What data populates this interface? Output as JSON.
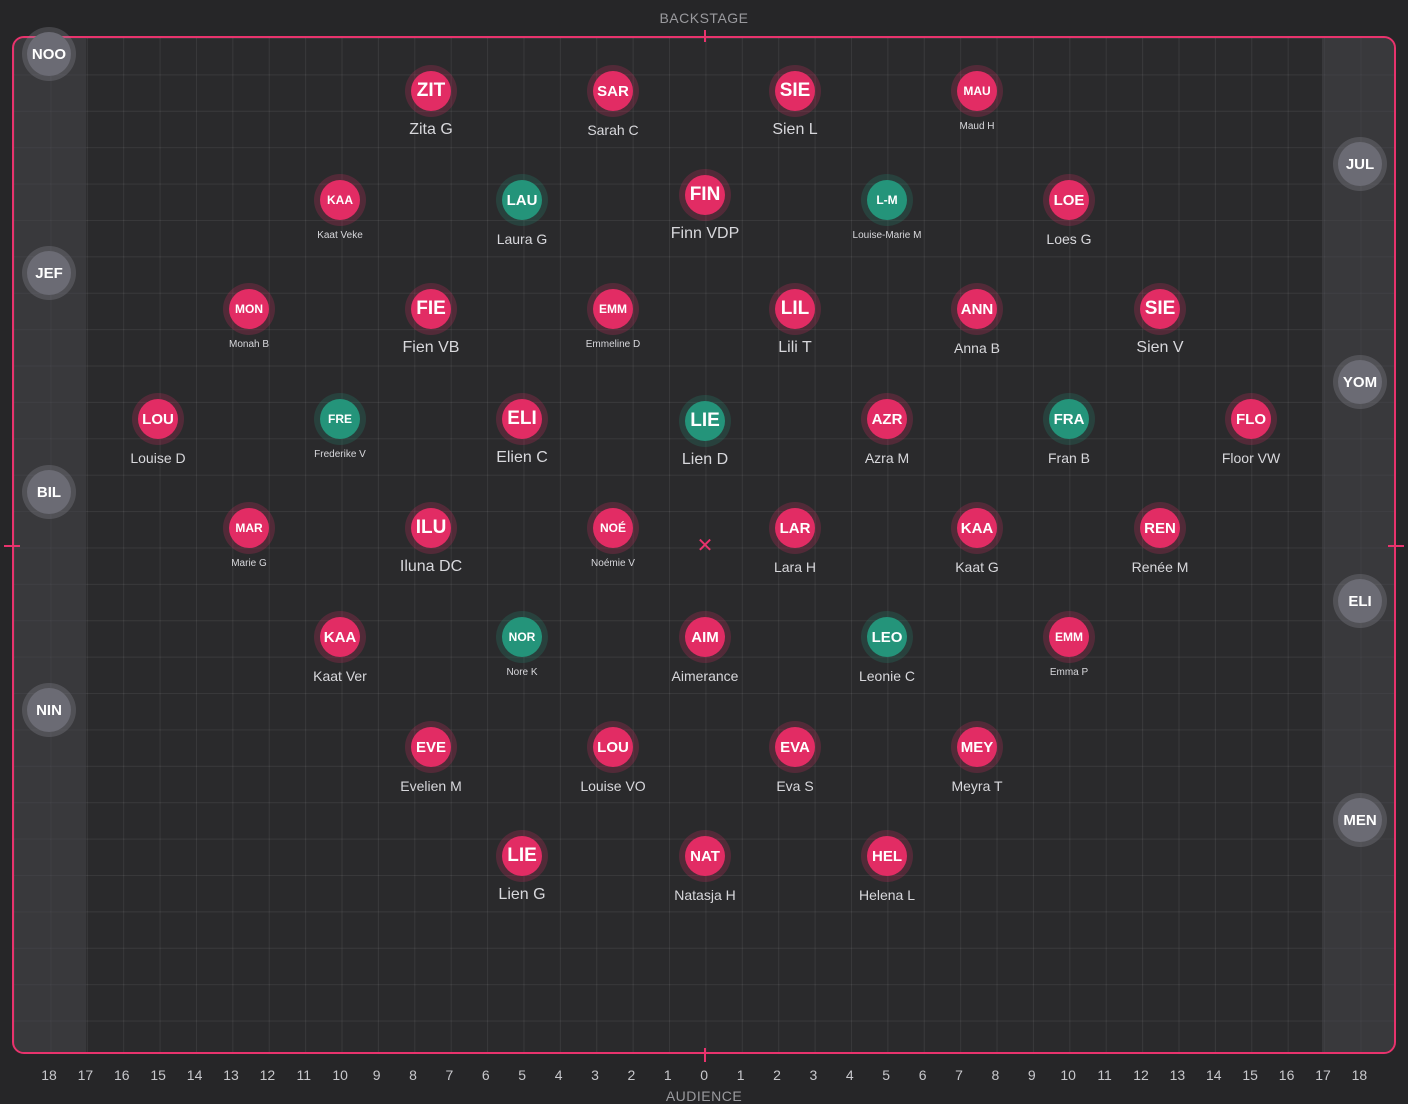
{
  "labels": {
    "top": "BACKSTAGE",
    "bottom": "AUDIENCE"
  },
  "colors": {
    "accent": "#e8336d",
    "pink_dancer": "#e22c64",
    "teal_dancer": "#24947a",
    "offstage_dancer": "#6b6b74"
  },
  "axis_numbers": [
    "18",
    "17",
    "16",
    "15",
    "14",
    "13",
    "12",
    "11",
    "10",
    "9",
    "8",
    "7",
    "6",
    "5",
    "4",
    "3",
    "2",
    "1",
    "0",
    "1",
    "2",
    "3",
    "4",
    "5",
    "6",
    "7",
    "8",
    "9",
    "10",
    "11",
    "12",
    "13",
    "14",
    "15",
    "16",
    "17",
    "18"
  ],
  "dancers": [
    {
      "code": "ZIT",
      "name": "Zita G",
      "color": "pink",
      "size": "big"
    },
    {
      "code": "SAR",
      "name": "Sarah C",
      "color": "pink",
      "size": "normal"
    },
    {
      "code": "SIE",
      "name": "Sien L",
      "color": "pink",
      "size": "big"
    },
    {
      "code": "MAU",
      "name": "Maud H",
      "color": "pink",
      "size": "small"
    },
    {
      "code": "KAA",
      "name": "Kaat Veke",
      "color": "pink",
      "size": "small"
    },
    {
      "code": "LAU",
      "name": "Laura G",
      "color": "teal",
      "size": "normal"
    },
    {
      "code": "FIN",
      "name": "Finn VDP",
      "color": "pink",
      "size": "big"
    },
    {
      "code": "L-M",
      "name": "Louise-Marie M",
      "color": "teal",
      "size": "small"
    },
    {
      "code": "LOE",
      "name": "Loes G",
      "color": "pink",
      "size": "normal"
    },
    {
      "code": "MON",
      "name": "Monah B",
      "color": "pink",
      "size": "small"
    },
    {
      "code": "FIE",
      "name": "Fien VB",
      "color": "pink",
      "size": "big"
    },
    {
      "code": "EMM",
      "name": "Emmeline D",
      "color": "pink",
      "size": "small"
    },
    {
      "code": "LIL",
      "name": "Lili T",
      "color": "pink",
      "size": "big"
    },
    {
      "code": "ANN",
      "name": "Anna B",
      "color": "pink",
      "size": "normal"
    },
    {
      "code": "SIE",
      "name": "Sien V",
      "color": "pink",
      "size": "big"
    },
    {
      "code": "LOU",
      "name": "Louise D",
      "color": "pink",
      "size": "normal"
    },
    {
      "code": "FRE",
      "name": "Frederike V",
      "color": "teal",
      "size": "small"
    },
    {
      "code": "ELI",
      "name": "Elien C",
      "color": "pink",
      "size": "big"
    },
    {
      "code": "LIE",
      "name": "Lien D",
      "color": "teal",
      "size": "big"
    },
    {
      "code": "AZR",
      "name": "Azra M",
      "color": "pink",
      "size": "normal"
    },
    {
      "code": "FRA",
      "name": "Fran B",
      "color": "teal",
      "size": "normal"
    },
    {
      "code": "FLO",
      "name": "Floor VW",
      "color": "pink",
      "size": "normal"
    },
    {
      "code": "MAR",
      "name": "Marie G",
      "color": "pink",
      "size": "small"
    },
    {
      "code": "ILU",
      "name": "Iluna DC",
      "color": "pink",
      "size": "big"
    },
    {
      "code": "NOÉ",
      "name": "Noémie V",
      "color": "pink",
      "size": "small"
    },
    {
      "code": "LAR",
      "name": "Lara H",
      "color": "pink",
      "size": "normal"
    },
    {
      "code": "KAA",
      "name": "Kaat G",
      "color": "pink",
      "size": "normal"
    },
    {
      "code": "REN",
      "name": "Renée M",
      "color": "pink",
      "size": "normal"
    },
    {
      "code": "KAA",
      "name": "Kaat Ver",
      "color": "pink",
      "size": "normal"
    },
    {
      "code": "NOR",
      "name": "Nore K",
      "color": "teal",
      "size": "small"
    },
    {
      "code": "AIM",
      "name": "Aimerance",
      "color": "pink",
      "size": "normal"
    },
    {
      "code": "LEO",
      "name": "Leonie C",
      "color": "teal",
      "size": "normal"
    },
    {
      "code": "EMM",
      "name": "Emma P",
      "color": "pink",
      "size": "small"
    },
    {
      "code": "EVE",
      "name": "Evelien M",
      "color": "pink",
      "size": "normal"
    },
    {
      "code": "LOU",
      "name": "Louise VO",
      "color": "pink",
      "size": "normal"
    },
    {
      "code": "EVA",
      "name": "Eva S",
      "color": "pink",
      "size": "normal"
    },
    {
      "code": "MEY",
      "name": "Meyra T",
      "color": "pink",
      "size": "normal"
    },
    {
      "code": "LIE",
      "name": "Lien G",
      "color": "pink",
      "size": "big"
    },
    {
      "code": "NAT",
      "name": "Natasja H",
      "color": "pink",
      "size": "normal"
    },
    {
      "code": "HEL",
      "name": "Helena L",
      "color": "pink",
      "size": "normal"
    }
  ],
  "offstage": [
    {
      "code": "NOO",
      "name": ""
    },
    {
      "code": "JEF",
      "name": ""
    },
    {
      "code": "BIL",
      "name": ""
    },
    {
      "code": "NIN",
      "name": ""
    },
    {
      "code": "JUL",
      "name": ""
    },
    {
      "code": "YOM",
      "name": ""
    },
    {
      "code": "ELI",
      "name": ""
    },
    {
      "code": "MEN",
      "name": ""
    }
  ]
}
